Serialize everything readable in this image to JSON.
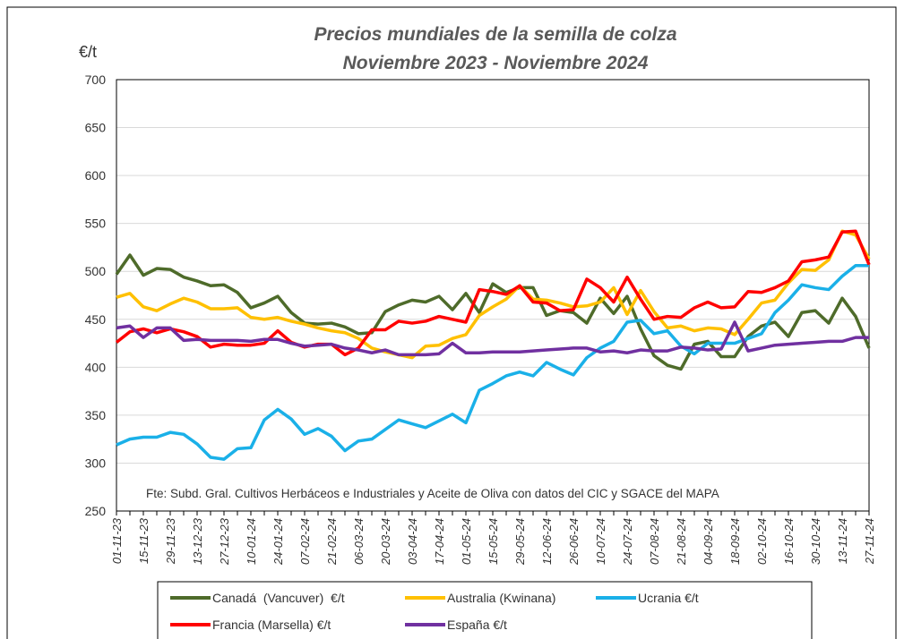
{
  "chart_data": {
    "type": "line",
    "title": "Precios mundiales de la semilla de colza",
    "subtitle": "Noviembre 2023 - Noviembre 2024",
    "y_label": "€/t",
    "annotation": "Fte: Subd. Gral. Cultivos Herbáceos e Industriales y Aceite de Oliva con datos del CIC y SGACE del MAPA",
    "categories": [
      "01-11-23",
      null,
      "15-11-23",
      null,
      "29-11-23",
      null,
      "13-12-23",
      null,
      "27-12-23",
      null,
      "10-01-24",
      null,
      "24-01-24",
      null,
      "07-02-24",
      null,
      "21-02-24",
      null,
      "06-03-24",
      null,
      "20-03-24",
      null,
      "03-04-24",
      null,
      "17-04-24",
      null,
      "01-05-24",
      null,
      "15-05-24",
      null,
      "29-05-24",
      null,
      "12-06-24",
      null,
      "26-06-24",
      null,
      "10-07-24",
      null,
      "24-07-24",
      null,
      "07-08-24",
      null,
      "21-08-24",
      null,
      "04-09-24",
      null,
      "18-09-24",
      null,
      "02-10-24",
      null,
      "16-10-24",
      null,
      "30-10-24",
      null,
      "13-11-24",
      null,
      "27-11-24"
    ],
    "series": [
      {
        "name": "Canadá  (Vancuver)  €/t",
        "color": "#4e6b2a",
        "values": [
          497,
          517,
          496,
          503,
          502,
          494,
          490,
          485,
          486,
          478,
          462,
          467,
          474,
          457,
          446,
          445,
          446,
          442,
          435,
          436,
          458,
          465,
          470,
          468,
          474,
          460,
          477,
          457,
          487,
          478,
          483,
          483,
          454,
          459,
          457,
          446,
          472,
          456,
          474,
          440,
          412,
          402,
          398,
          424,
          427,
          411,
          411,
          432,
          443,
          447,
          432,
          457,
          459,
          446,
          472,
          453,
          420
        ]
      },
      {
        "name": "Australia (Kwinana)",
        "color": "#ffc000",
        "values": [
          473,
          477,
          463,
          459,
          466,
          472,
          468,
          461,
          461,
          462,
          452,
          450,
          452,
          448,
          445,
          441,
          438,
          436,
          430,
          420,
          416,
          413,
          410,
          422,
          423,
          430,
          434,
          454,
          463,
          471,
          485,
          471,
          470,
          467,
          463,
          464,
          468,
          483,
          455,
          480,
          458,
          441,
          443,
          438,
          441,
          440,
          434,
          450,
          467,
          470,
          488,
          502,
          501,
          512,
          542,
          538,
          513
        ]
      },
      {
        "name": "Ucrania €/t",
        "color": "#1ab0e8",
        "values": [
          319,
          325,
          327,
          327,
          332,
          330,
          320,
          306,
          304,
          315,
          316,
          345,
          356,
          346,
          330,
          336,
          328,
          313,
          323,
          325,
          335,
          345,
          341,
          337,
          344,
          351,
          342,
          376,
          383,
          391,
          395,
          391,
          405,
          398,
          392,
          410,
          420,
          427,
          447,
          449,
          435,
          438,
          422,
          414,
          425,
          425,
          425,
          430,
          435,
          457,
          470,
          486,
          483,
          481,
          495,
          506,
          506
        ]
      },
      {
        "name": "Francia (Marsella) €/t",
        "color": "#ff0000",
        "values": [
          426,
          437,
          440,
          436,
          440,
          437,
          432,
          421,
          424,
          423,
          423,
          425,
          438,
          426,
          421,
          424,
          424,
          413,
          420,
          439,
          439,
          448,
          446,
          448,
          453,
          450,
          447,
          481,
          479,
          476,
          485,
          468,
          467,
          459,
          460,
          492,
          483,
          468,
          494,
          471,
          450,
          453,
          452,
          462,
          468,
          462,
          463,
          479,
          478,
          483,
          490,
          510,
          512,
          515,
          541,
          542,
          507
        ]
      },
      {
        "name": "España €/t",
        "color": "#7030a0",
        "values": [
          441,
          443,
          431,
          441,
          441,
          428,
          429,
          428,
          428,
          428,
          427,
          429,
          429,
          425,
          422,
          423,
          424,
          420,
          418,
          415,
          418,
          413,
          413,
          413,
          414,
          425,
          415,
          415,
          416,
          416,
          416,
          417,
          418,
          419,
          420,
          420,
          416,
          417,
          415,
          418,
          417,
          417,
          421,
          420,
          418,
          419,
          447,
          417,
          420,
          423,
          424,
          425,
          426,
          427,
          427,
          431,
          431
        ]
      }
    ],
    "ylim": [
      250,
      700
    ],
    "yticks": [
      250,
      300,
      350,
      400,
      450,
      500,
      550,
      600,
      650,
      700
    ],
    "grid": true
  }
}
